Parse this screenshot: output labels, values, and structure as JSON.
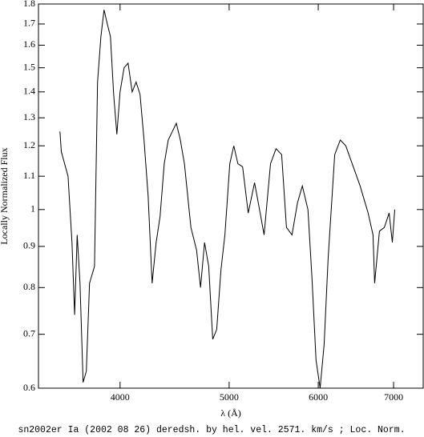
{
  "chart_data": {
    "type": "line",
    "title": "sn2002er Ia (2002 08 26) deredsh. by hel. vel.  2571. km/s ;  Loc. Norm.",
    "xlabel": "λ (Å)",
    "ylabel": "Locally Normalized Flux",
    "xscale": "log",
    "yscale": "log",
    "xlim": [
      3385,
      7437
    ],
    "ylim": [
      0.6,
      1.8
    ],
    "xticks": [
      4000,
      5000,
      6000,
      7000
    ],
    "yticks": [
      0.6,
      0.7,
      0.8,
      0.9,
      1,
      1.1,
      1.2,
      1.3,
      1.4,
      1.5,
      1.6,
      1.7,
      1.8
    ],
    "series": [
      {
        "color": "#000000",
        "x": [
          3537,
          3547,
          3596,
          3625,
          3645,
          3664,
          3685,
          3709,
          3733,
          3758,
          3796,
          3820,
          3846,
          3871,
          3897,
          3922,
          3948,
          3974,
          4000,
          4033,
          4066,
          4100,
          4133,
          4167,
          4201,
          4236,
          4271,
          4306,
          4341,
          4378,
          4414,
          4451,
          4488,
          4525,
          4563,
          4624,
          4678,
          4716,
          4755,
          4795,
          4835,
          4875,
          4916,
          4957,
          5007,
          5048,
          5090,
          5140,
          5199,
          5267,
          5328,
          5371,
          5442,
          5504,
          5567,
          5622,
          5686,
          5751,
          5808,
          5875,
          5924,
          5973,
          6023,
          6073,
          6123,
          6205,
          6276,
          6348,
          6431,
          6537,
          6645,
          6711,
          6733,
          6800,
          6868,
          6936,
          6982,
          7016
        ],
        "values": [
          1.25,
          1.18,
          1.1,
          0.91,
          0.74,
          0.93,
          0.81,
          0.61,
          0.63,
          0.81,
          0.85,
          1.44,
          1.64,
          1.77,
          1.7,
          1.64,
          1.39,
          1.24,
          1.4,
          1.5,
          1.52,
          1.4,
          1.44,
          1.39,
          1.22,
          1.04,
          0.81,
          0.91,
          0.98,
          1.14,
          1.22,
          1.25,
          1.28,
          1.22,
          1.14,
          0.95,
          0.89,
          0.8,
          0.91,
          0.85,
          0.69,
          0.71,
          0.84,
          0.93,
          1.14,
          1.2,
          1.14,
          1.13,
          0.99,
          1.08,
          0.99,
          0.93,
          1.14,
          1.19,
          1.17,
          0.95,
          0.93,
          1.02,
          1.07,
          1.0,
          0.82,
          0.65,
          0.6,
          0.68,
          0.87,
          1.17,
          1.22,
          1.2,
          1.14,
          1.07,
          0.99,
          0.93,
          0.81,
          0.94,
          0.95,
          0.99,
          0.91,
          1.0
        ]
      }
    ]
  }
}
